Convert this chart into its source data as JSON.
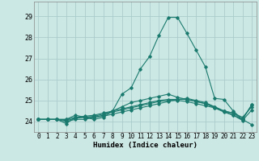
{
  "xlabel": "Humidex (Indice chaleur)",
  "ylabel": "",
  "xlim": [
    -0.5,
    23.5
  ],
  "ylim": [
    23.5,
    29.7
  ],
  "yticks": [
    24,
    25,
    26,
    27,
    28,
    29
  ],
  "xticks": [
    0,
    1,
    2,
    3,
    4,
    5,
    6,
    7,
    8,
    9,
    10,
    11,
    12,
    13,
    14,
    15,
    16,
    17,
    18,
    19,
    20,
    21,
    22,
    23
  ],
  "bg_color": "#cce8e4",
  "grid_color": "#aacccc",
  "line_color": "#1a7a6e",
  "lines": [
    [
      24.1,
      24.1,
      24.1,
      23.9,
      24.2,
      24.2,
      24.1,
      24.2,
      24.5,
      25.3,
      25.6,
      26.5,
      27.1,
      28.1,
      28.95,
      28.95,
      28.2,
      27.4,
      26.6,
      25.1,
      25.05,
      24.5,
      24.1,
      23.85
    ],
    [
      24.1,
      24.1,
      24.1,
      24.1,
      24.3,
      24.2,
      24.2,
      24.3,
      24.5,
      24.7,
      24.9,
      25.0,
      25.1,
      25.2,
      25.3,
      25.15,
      25.05,
      24.95,
      24.85,
      24.65,
      24.5,
      24.4,
      24.2,
      24.7
    ],
    [
      24.1,
      24.1,
      24.1,
      24.1,
      24.2,
      24.25,
      24.3,
      24.4,
      24.5,
      24.6,
      24.7,
      24.8,
      24.9,
      25.0,
      25.05,
      25.05,
      25.05,
      24.95,
      24.85,
      24.7,
      24.5,
      24.4,
      24.1,
      24.8
    ],
    [
      24.1,
      24.1,
      24.1,
      24.0,
      24.1,
      24.1,
      24.2,
      24.25,
      24.35,
      24.45,
      24.55,
      24.65,
      24.75,
      24.85,
      24.95,
      25.05,
      25.1,
      25.0,
      24.9,
      24.7,
      24.5,
      24.3,
      24.05,
      24.55
    ],
    [
      24.1,
      24.1,
      24.1,
      24.05,
      24.15,
      24.2,
      24.25,
      24.35,
      24.45,
      24.55,
      24.65,
      24.75,
      24.85,
      24.95,
      25.0,
      25.0,
      24.95,
      24.85,
      24.75,
      24.65,
      24.45,
      24.3,
      24.1,
      24.8
    ]
  ]
}
